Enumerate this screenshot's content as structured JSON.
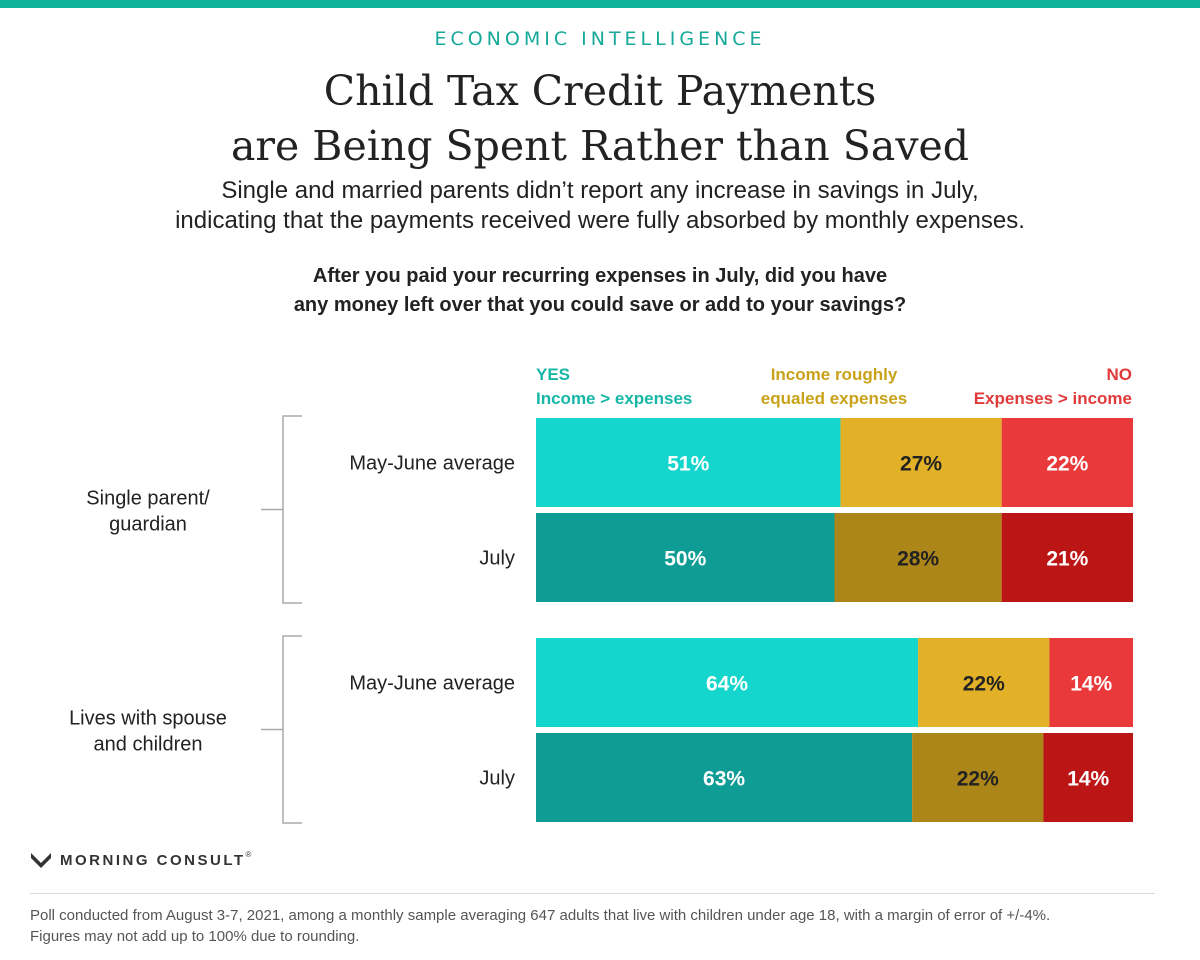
{
  "header": {
    "kicker": "ECONOMIC INTELLIGENCE",
    "title_line1": "Child Tax Credit Payments",
    "title_line2": "are Being Spent Rather than Saved",
    "subtitle_line1": "Single and married parents didn’t report any increase in savings in July,",
    "subtitle_line2": "indicating that the payments received were fully absorbed by monthly expenses.",
    "question_line1": "After you paid your recurring expenses in July, did you have",
    "question_line2": "any money left over that you could save or add to your savings?"
  },
  "chart_data": {
    "type": "bar",
    "orientation": "horizontal",
    "stacked": true,
    "percent_scale": [
      0,
      100
    ],
    "legend": [
      {
        "line1": "YES",
        "line2": "Income > expenses",
        "color": "#16b7a6"
      },
      {
        "line1": "Income roughly",
        "line2": "equaled expenses",
        "color": "#c9a21a"
      },
      {
        "line1": "NO",
        "line2": "Expenses > income",
        "color": "#e03a3a"
      }
    ],
    "series_names": [
      "YES Income > expenses",
      "Income roughly equaled expenses",
      "NO Expenses > income"
    ],
    "colors": {
      "may_june": [
        "#14d6cc",
        "#e3b127",
        "#e9393a"
      ],
      "july": [
        "#0f9c94",
        "#ac8618",
        "#bc1515"
      ]
    },
    "groups": [
      {
        "label_line1": "Single parent/",
        "label_line2": "guardian",
        "rows": [
          {
            "label": "May-June average",
            "period": "may_june",
            "values": [
              51,
              27,
              22
            ],
            "labels": [
              "51%",
              "27%",
              "22%"
            ]
          },
          {
            "label": "July",
            "period": "july",
            "values": [
              50,
              28,
              21
            ],
            "labels": [
              "50%",
              "28%",
              "21%"
            ]
          }
        ]
      },
      {
        "label_line1": "Lives with spouse",
        "label_line2": "and children",
        "rows": [
          {
            "label": "May-June average",
            "period": "may_june",
            "values": [
              64,
              22,
              14
            ],
            "labels": [
              "64%",
              "22%",
              "14%"
            ]
          },
          {
            "label": "July",
            "period": "july",
            "values": [
              63,
              22,
              14
            ],
            "labels": [
              "63%",
              "22%",
              "14%"
            ]
          }
        ]
      }
    ]
  },
  "brand": {
    "name": "MORNING CONSULT",
    "mark": "®"
  },
  "footnote": {
    "line1": "Poll conducted from August 3-7, 2021, among a monthly sample averaging 647 adults that live with children under age 18, with a margin of error of +/-4%.",
    "line2": "Figures may not add up to 100% due to rounding."
  }
}
